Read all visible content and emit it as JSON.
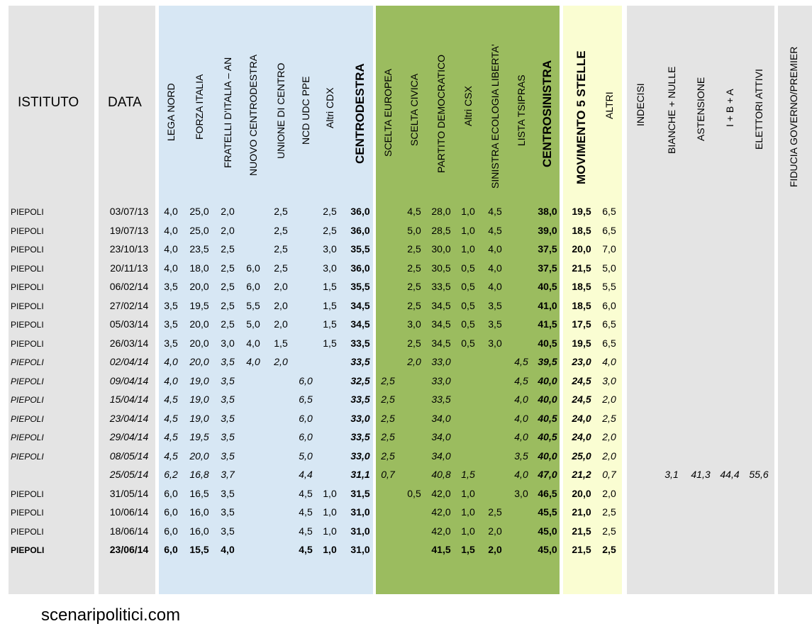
{
  "headers": {
    "istituto": "ISTITUTO",
    "data": "DATA",
    "columns": [
      {
        "key": "lega_nord",
        "label": "LEGA NORD",
        "bold": false
      },
      {
        "key": "forza_italia",
        "label": "FORZA ITALIA",
        "bold": false
      },
      {
        "key": "fratelli_italia",
        "label": "FRATELLI D'ITALIA – AN",
        "bold": false
      },
      {
        "key": "nuovo_centrodestra",
        "label": "NUOVO  CENTRODESTRA",
        "bold": false
      },
      {
        "key": "unione_di_centro",
        "label": "UNIONE DI CENTRO",
        "bold": false
      },
      {
        "key": "ncd_udc_ppe",
        "label": "NCD UDC PPE",
        "bold": false
      },
      {
        "key": "altri_cdx",
        "label": "Altri CDX",
        "bold": false
      },
      {
        "key": "centrodestra",
        "label": "CENTRODESTRA",
        "bold": true
      },
      {
        "key": "scelta_europea",
        "label": "SCELTA EUROPEA",
        "bold": false
      },
      {
        "key": "scelta_civica",
        "label": "SCELTA CIVICA",
        "bold": false
      },
      {
        "key": "partito_democratico",
        "label": "PARTITO DEMOCRATICO",
        "bold": false
      },
      {
        "key": "altri_csx",
        "label": "Altri CSX",
        "bold": false
      },
      {
        "key": "sel",
        "label": "SINISTRA ECOLOGIA LIBERTA'",
        "bold": false
      },
      {
        "key": "lista_tsipras",
        "label": "LISTA TSIPRAS",
        "bold": false
      },
      {
        "key": "centrosinistra",
        "label": "CENTROSINISTRA",
        "bold": true
      },
      {
        "key": "m5s",
        "label": "MOVIMENTO 5 STELLE",
        "bold": true
      },
      {
        "key": "altri",
        "label": "ALTRI",
        "bold": false
      },
      {
        "key": "indecisi",
        "label": "INDECISI",
        "bold": false
      },
      {
        "key": "bianche_nulle",
        "label": "BIANCHE + NULLE",
        "bold": false
      },
      {
        "key": "astensione",
        "label": "ASTENSIONE",
        "bold": false
      },
      {
        "key": "i_b_a",
        "label": "I + B + A",
        "bold": false
      },
      {
        "key": "elettori_attivi",
        "label": "ELETTORI ATTIVI",
        "bold": false
      },
      {
        "key": "fiducia",
        "label": "FIDUCIA GOVERNO/PREMIER",
        "bold": false
      }
    ]
  },
  "rows": [
    {
      "istituto": "PIEPOLI",
      "data": "03/07/13",
      "style": "normal",
      "values": [
        "4,0",
        "25,0",
        "2,0",
        "",
        "2,5",
        "",
        "2,5",
        "36,0",
        "",
        "4,5",
        "28,0",
        "1,0",
        "4,5",
        "",
        "38,0",
        "19,5",
        "6,5",
        "",
        "",
        "",
        "",
        "",
        ""
      ]
    },
    {
      "istituto": "PIEPOLI",
      "data": "19/07/13",
      "style": "normal",
      "values": [
        "4,0",
        "25,0",
        "2,0",
        "",
        "2,5",
        "",
        "2,5",
        "36,0",
        "",
        "5,0",
        "28,5",
        "1,0",
        "4,5",
        "",
        "39,0",
        "18,5",
        "6,5",
        "",
        "",
        "",
        "",
        "",
        ""
      ]
    },
    {
      "istituto": "PIEPOLI",
      "data": "23/10/13",
      "style": "normal",
      "values": [
        "4,0",
        "23,5",
        "2,5",
        "",
        "2,5",
        "",
        "3,0",
        "35,5",
        "",
        "2,5",
        "30,0",
        "1,0",
        "4,0",
        "",
        "37,5",
        "20,0",
        "7,0",
        "",
        "",
        "",
        "",
        "",
        ""
      ]
    },
    {
      "istituto": "PIEPOLI",
      "data": "20/11/13",
      "style": "normal",
      "values": [
        "4,0",
        "18,0",
        "2,5",
        "6,0",
        "2,5",
        "",
        "3,0",
        "36,0",
        "",
        "2,5",
        "30,5",
        "0,5",
        "4,0",
        "",
        "37,5",
        "21,5",
        "5,0",
        "",
        "",
        "",
        "",
        "",
        ""
      ]
    },
    {
      "istituto": "PIEPOLI",
      "data": "06/02/14",
      "style": "normal",
      "values": [
        "3,5",
        "20,0",
        "2,5",
        "6,0",
        "2,0",
        "",
        "1,5",
        "35,5",
        "",
        "2,5",
        "33,5",
        "0,5",
        "4,0",
        "",
        "40,5",
        "18,5",
        "5,5",
        "",
        "",
        "",
        "",
        "",
        ""
      ]
    },
    {
      "istituto": "PIEPOLI",
      "data": "27/02/14",
      "style": "normal",
      "values": [
        "3,5",
        "19,5",
        "2,5",
        "5,5",
        "2,0",
        "",
        "1,5",
        "34,5",
        "",
        "2,5",
        "34,5",
        "0,5",
        "3,5",
        "",
        "41,0",
        "18,5",
        "6,0",
        "",
        "",
        "",
        "",
        "",
        ""
      ]
    },
    {
      "istituto": "PIEPOLI",
      "data": "05/03/14",
      "style": "normal",
      "values": [
        "3,5",
        "20,0",
        "2,5",
        "5,0",
        "2,0",
        "",
        "1,5",
        "34,5",
        "",
        "3,0",
        "34,5",
        "0,5",
        "3,5",
        "",
        "41,5",
        "17,5",
        "6,5",
        "",
        "",
        "",
        "",
        "",
        ""
      ]
    },
    {
      "istituto": "PIEPOLI",
      "data": "26/03/14",
      "style": "normal",
      "values": [
        "3,5",
        "20,0",
        "3,0",
        "4,0",
        "1,5",
        "",
        "1,5",
        "33,5",
        "",
        "2,5",
        "34,5",
        "0,5",
        "3,0",
        "",
        "40,5",
        "19,5",
        "6,5",
        "",
        "",
        "",
        "",
        "",
        ""
      ]
    },
    {
      "istituto": "PIEPOLI",
      "data": "02/04/14",
      "style": "italic",
      "values": [
        "4,0",
        "20,0",
        "3,5",
        "4,0",
        "2,0",
        "",
        "",
        "33,5",
        "",
        "2,0",
        "33,0",
        "",
        "",
        "4,5",
        "39,5",
        "23,0",
        "4,0",
        "",
        "",
        "",
        "",
        "",
        ""
      ]
    },
    {
      "istituto": "PIEPOLI",
      "data": "09/04/14",
      "style": "italic",
      "values": [
        "4,0",
        "19,0",
        "3,5",
        "",
        "",
        "6,0",
        "",
        "32,5",
        "2,5",
        "",
        "33,0",
        "",
        "",
        "4,5",
        "40,0",
        "24,5",
        "3,0",
        "",
        "",
        "",
        "",
        "",
        ""
      ]
    },
    {
      "istituto": "PIEPOLI",
      "data": "15/04/14",
      "style": "italic",
      "values": [
        "4,5",
        "19,0",
        "3,5",
        "",
        "",
        "6,5",
        "",
        "33,5",
        "2,5",
        "",
        "33,5",
        "",
        "",
        "4,0",
        "40,0",
        "24,5",
        "2,0",
        "",
        "",
        "",
        "",
        "",
        ""
      ]
    },
    {
      "istituto": "PIEPOLI",
      "data": "23/04/14",
      "style": "italic",
      "values": [
        "4,5",
        "19,0",
        "3,5",
        "",
        "",
        "6,0",
        "",
        "33,0",
        "2,5",
        "",
        "34,0",
        "",
        "",
        "4,0",
        "40,5",
        "24,0",
        "2,5",
        "",
        "",
        "",
        "",
        "",
        ""
      ]
    },
    {
      "istituto": "PIEPOLI",
      "data": "29/04/14",
      "style": "italic",
      "values": [
        "4,5",
        "19,5",
        "3,5",
        "",
        "",
        "6,0",
        "",
        "33,5",
        "2,5",
        "",
        "34,0",
        "",
        "",
        "4,0",
        "40,5",
        "24,0",
        "2,0",
        "",
        "",
        "",
        "",
        "",
        ""
      ]
    },
    {
      "istituto": "PIEPOLI",
      "data": "08/05/14",
      "style": "italic",
      "values": [
        "4,5",
        "20,0",
        "3,5",
        "",
        "",
        "5,0",
        "",
        "33,0",
        "2,5",
        "",
        "34,0",
        "",
        "",
        "3,5",
        "40,0",
        "25,0",
        "2,0",
        "",
        "",
        "",
        "",
        "",
        ""
      ]
    },
    {
      "istituto": "",
      "data": "25/05/14",
      "style": "italic",
      "values": [
        "6,2",
        "16,8",
        "3,7",
        "",
        "",
        "4,4",
        "",
        "31,1",
        "0,7",
        "",
        "40,8",
        "1,5",
        "",
        "4,0",
        "47,0",
        "21,2",
        "0,7",
        "",
        "3,1",
        "41,3",
        "44,4",
        "55,6",
        ""
      ]
    },
    {
      "istituto": "PIEPOLI",
      "data": "31/05/14",
      "style": "normal",
      "values": [
        "6,0",
        "16,5",
        "3,5",
        "",
        "",
        "4,5",
        "1,0",
        "31,5",
        "",
        "0,5",
        "42,0",
        "1,0",
        "",
        "3,0",
        "46,5",
        "20,0",
        "2,0",
        "",
        "",
        "",
        "",
        "",
        ""
      ]
    },
    {
      "istituto": "PIEPOLI",
      "data": "10/06/14",
      "style": "normal",
      "values": [
        "6,0",
        "16,0",
        "3,5",
        "",
        "",
        "4,5",
        "1,0",
        "31,0",
        "",
        "",
        "42,0",
        "1,0",
        "2,5",
        "",
        "45,5",
        "21,0",
        "2,5",
        "",
        "",
        "",
        "",
        "",
        ""
      ]
    },
    {
      "istituto": "PIEPOLI",
      "data": "18/06/14",
      "style": "normal",
      "values": [
        "6,0",
        "16,0",
        "3,5",
        "",
        "",
        "4,5",
        "1,0",
        "31,0",
        "",
        "",
        "42,0",
        "1,0",
        "2,0",
        "",
        "45,0",
        "21,5",
        "2,5",
        "",
        "",
        "",
        "",
        "",
        ""
      ]
    },
    {
      "istituto": "PIEPOLI",
      "data": "23/06/14",
      "style": "bold",
      "values": [
        "6,0",
        "15,5",
        "4,0",
        "",
        "",
        "4,5",
        "1,0",
        "31,0",
        "",
        "",
        "41,5",
        "1,5",
        "2,0",
        "",
        "45,0",
        "21,5",
        "2,5",
        "",
        "",
        "",
        "",
        "",
        ""
      ]
    }
  ],
  "footer": {
    "site": "scenaripolitici.com"
  },
  "colors": {
    "gray": "#e4e4e4",
    "blue": "#d7e7f4",
    "green": "#9bbc5f",
    "yellow": "#fafdd2"
  }
}
